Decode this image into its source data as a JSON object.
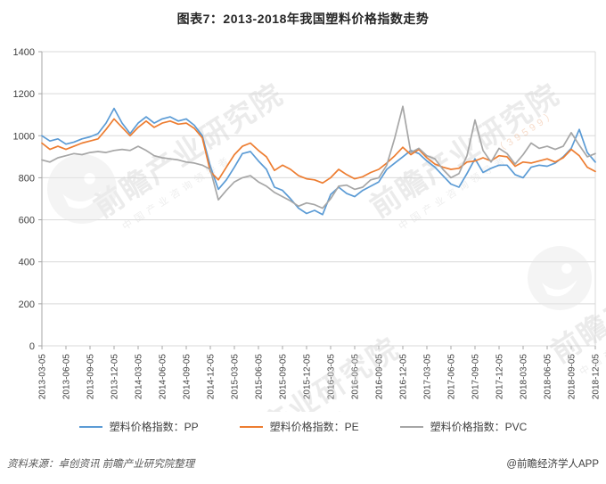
{
  "title": "图表7：2013-2018年我国塑料价格指数走势",
  "footer": {
    "source": "资料来源：卓创资讯 前瞻产业研究院整理",
    "credit": "@前瞻经济学人APP"
  },
  "watermark": {
    "text": "前瞻产业研究院",
    "subtext": "中国产业咨询领导者",
    "digits": "39599"
  },
  "chart_data": {
    "type": "line",
    "title": "图表7：2013-2018年我国塑料价格指数走势",
    "xlabel": "",
    "ylabel": "",
    "ylim": [
      0,
      1400
    ],
    "ytick_interval": 200,
    "grid": true,
    "legend_position": "bottom",
    "x_unit": "month",
    "categories": [
      "2013-03-05",
      "2013-06-05",
      "2013-09-05",
      "2013-12-05",
      "2014-03-05",
      "2014-06-05",
      "2014-09-05",
      "2014-12-05",
      "2015-03-05",
      "2015-06-05",
      "2015-09-05",
      "2015-12-05",
      "2016-03-05",
      "2016-06-05",
      "2016-09-05",
      "2016-12-05",
      "2017-03-05",
      "2017-06-05",
      "2017-09-05",
      "2017-12-05",
      "2018-03-05",
      "2018-06-05",
      "2018-09-05",
      "2018-12-05"
    ],
    "months_per_category": 3,
    "series": [
      {
        "id": "pp",
        "name": "塑料价格指数：PP",
        "color": "#5B9BD5",
        "values": [
          1000,
          975,
          985,
          960,
          970,
          985,
          995,
          1010,
          1060,
          1130,
          1060,
          1010,
          1060,
          1090,
          1060,
          1080,
          1090,
          1070,
          1080,
          1050,
          1000,
          855,
          745,
          790,
          850,
          915,
          925,
          880,
          840,
          755,
          740,
          700,
          655,
          630,
          645,
          625,
          720,
          755,
          725,
          710,
          740,
          760,
          780,
          840,
          870,
          900,
          930,
          915,
          880,
          850,
          810,
          770,
          755,
          820,
          890,
          825,
          845,
          860,
          860,
          815,
          800,
          850,
          860,
          855,
          870,
          900,
          940,
          1030,
          920,
          875
        ]
      },
      {
        "id": "pe",
        "name": "塑料价格指数：PE",
        "color": "#ED7D31",
        "values": [
          965,
          935,
          950,
          935,
          950,
          965,
          975,
          985,
          1030,
          1080,
          1040,
          1000,
          1040,
          1070,
          1040,
          1060,
          1070,
          1055,
          1060,
          1035,
          990,
          830,
          790,
          850,
          910,
          950,
          965,
          930,
          900,
          835,
          860,
          840,
          810,
          795,
          790,
          775,
          800,
          840,
          815,
          795,
          805,
          825,
          840,
          870,
          905,
          945,
          910,
          935,
          895,
          865,
          850,
          840,
          845,
          875,
          880,
          895,
          880,
          905,
          900,
          855,
          875,
          870,
          880,
          890,
          875,
          895,
          935,
          905,
          850,
          830
        ]
      },
      {
        "id": "pvc",
        "name": "塑料价格指数：PVC",
        "color": "#A6A6A6",
        "values": [
          885,
          875,
          895,
          905,
          915,
          910,
          920,
          925,
          920,
          930,
          935,
          930,
          950,
          930,
          905,
          895,
          890,
          885,
          875,
          870,
          860,
          840,
          695,
          740,
          780,
          800,
          810,
          780,
          760,
          730,
          710,
          690,
          665,
          680,
          672,
          655,
          700,
          760,
          765,
          745,
          755,
          790,
          800,
          860,
          990,
          1140,
          920,
          940,
          905,
          890,
          840,
          800,
          820,
          905,
          1075,
          930,
          875,
          940,
          915,
          865,
          910,
          965,
          940,
          950,
          935,
          950,
          1015,
          955,
          900,
          915
        ]
      }
    ]
  }
}
